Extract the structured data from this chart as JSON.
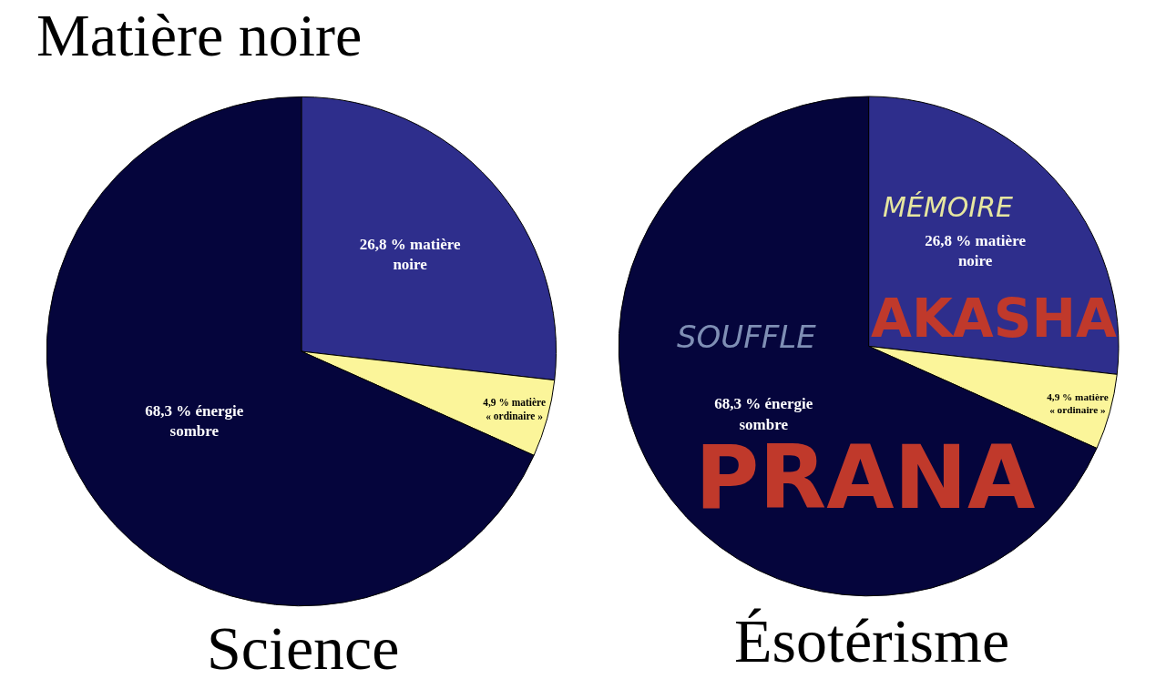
{
  "chart_data": [
    {
      "type": "pie",
      "title": "Matière noire",
      "subtitle": "Science",
      "categories": [
        "26,8 % matière noire",
        "4,9 % matière « ordinaire »",
        "68,3 % énergie sombre"
      ],
      "values": [
        26.8,
        4.9,
        68.3
      ],
      "colors": [
        "#2e2e8c",
        "#fbf59a",
        "#05053c"
      ]
    },
    {
      "type": "pie",
      "subtitle": "Ésotérisme",
      "categories": [
        "26,8 % matière noire",
        "4,9 % matière « ordinaire »",
        "68,3 % énergie sombre"
      ],
      "values": [
        26.8,
        4.9,
        68.3
      ],
      "colors": [
        "#2e2e8c",
        "#fbf59a",
        "#05053c"
      ],
      "annotations": [
        "MÉMOIRE",
        "AKASHA",
        "SOUFFLE",
        "PRANA"
      ]
    }
  ]
}
